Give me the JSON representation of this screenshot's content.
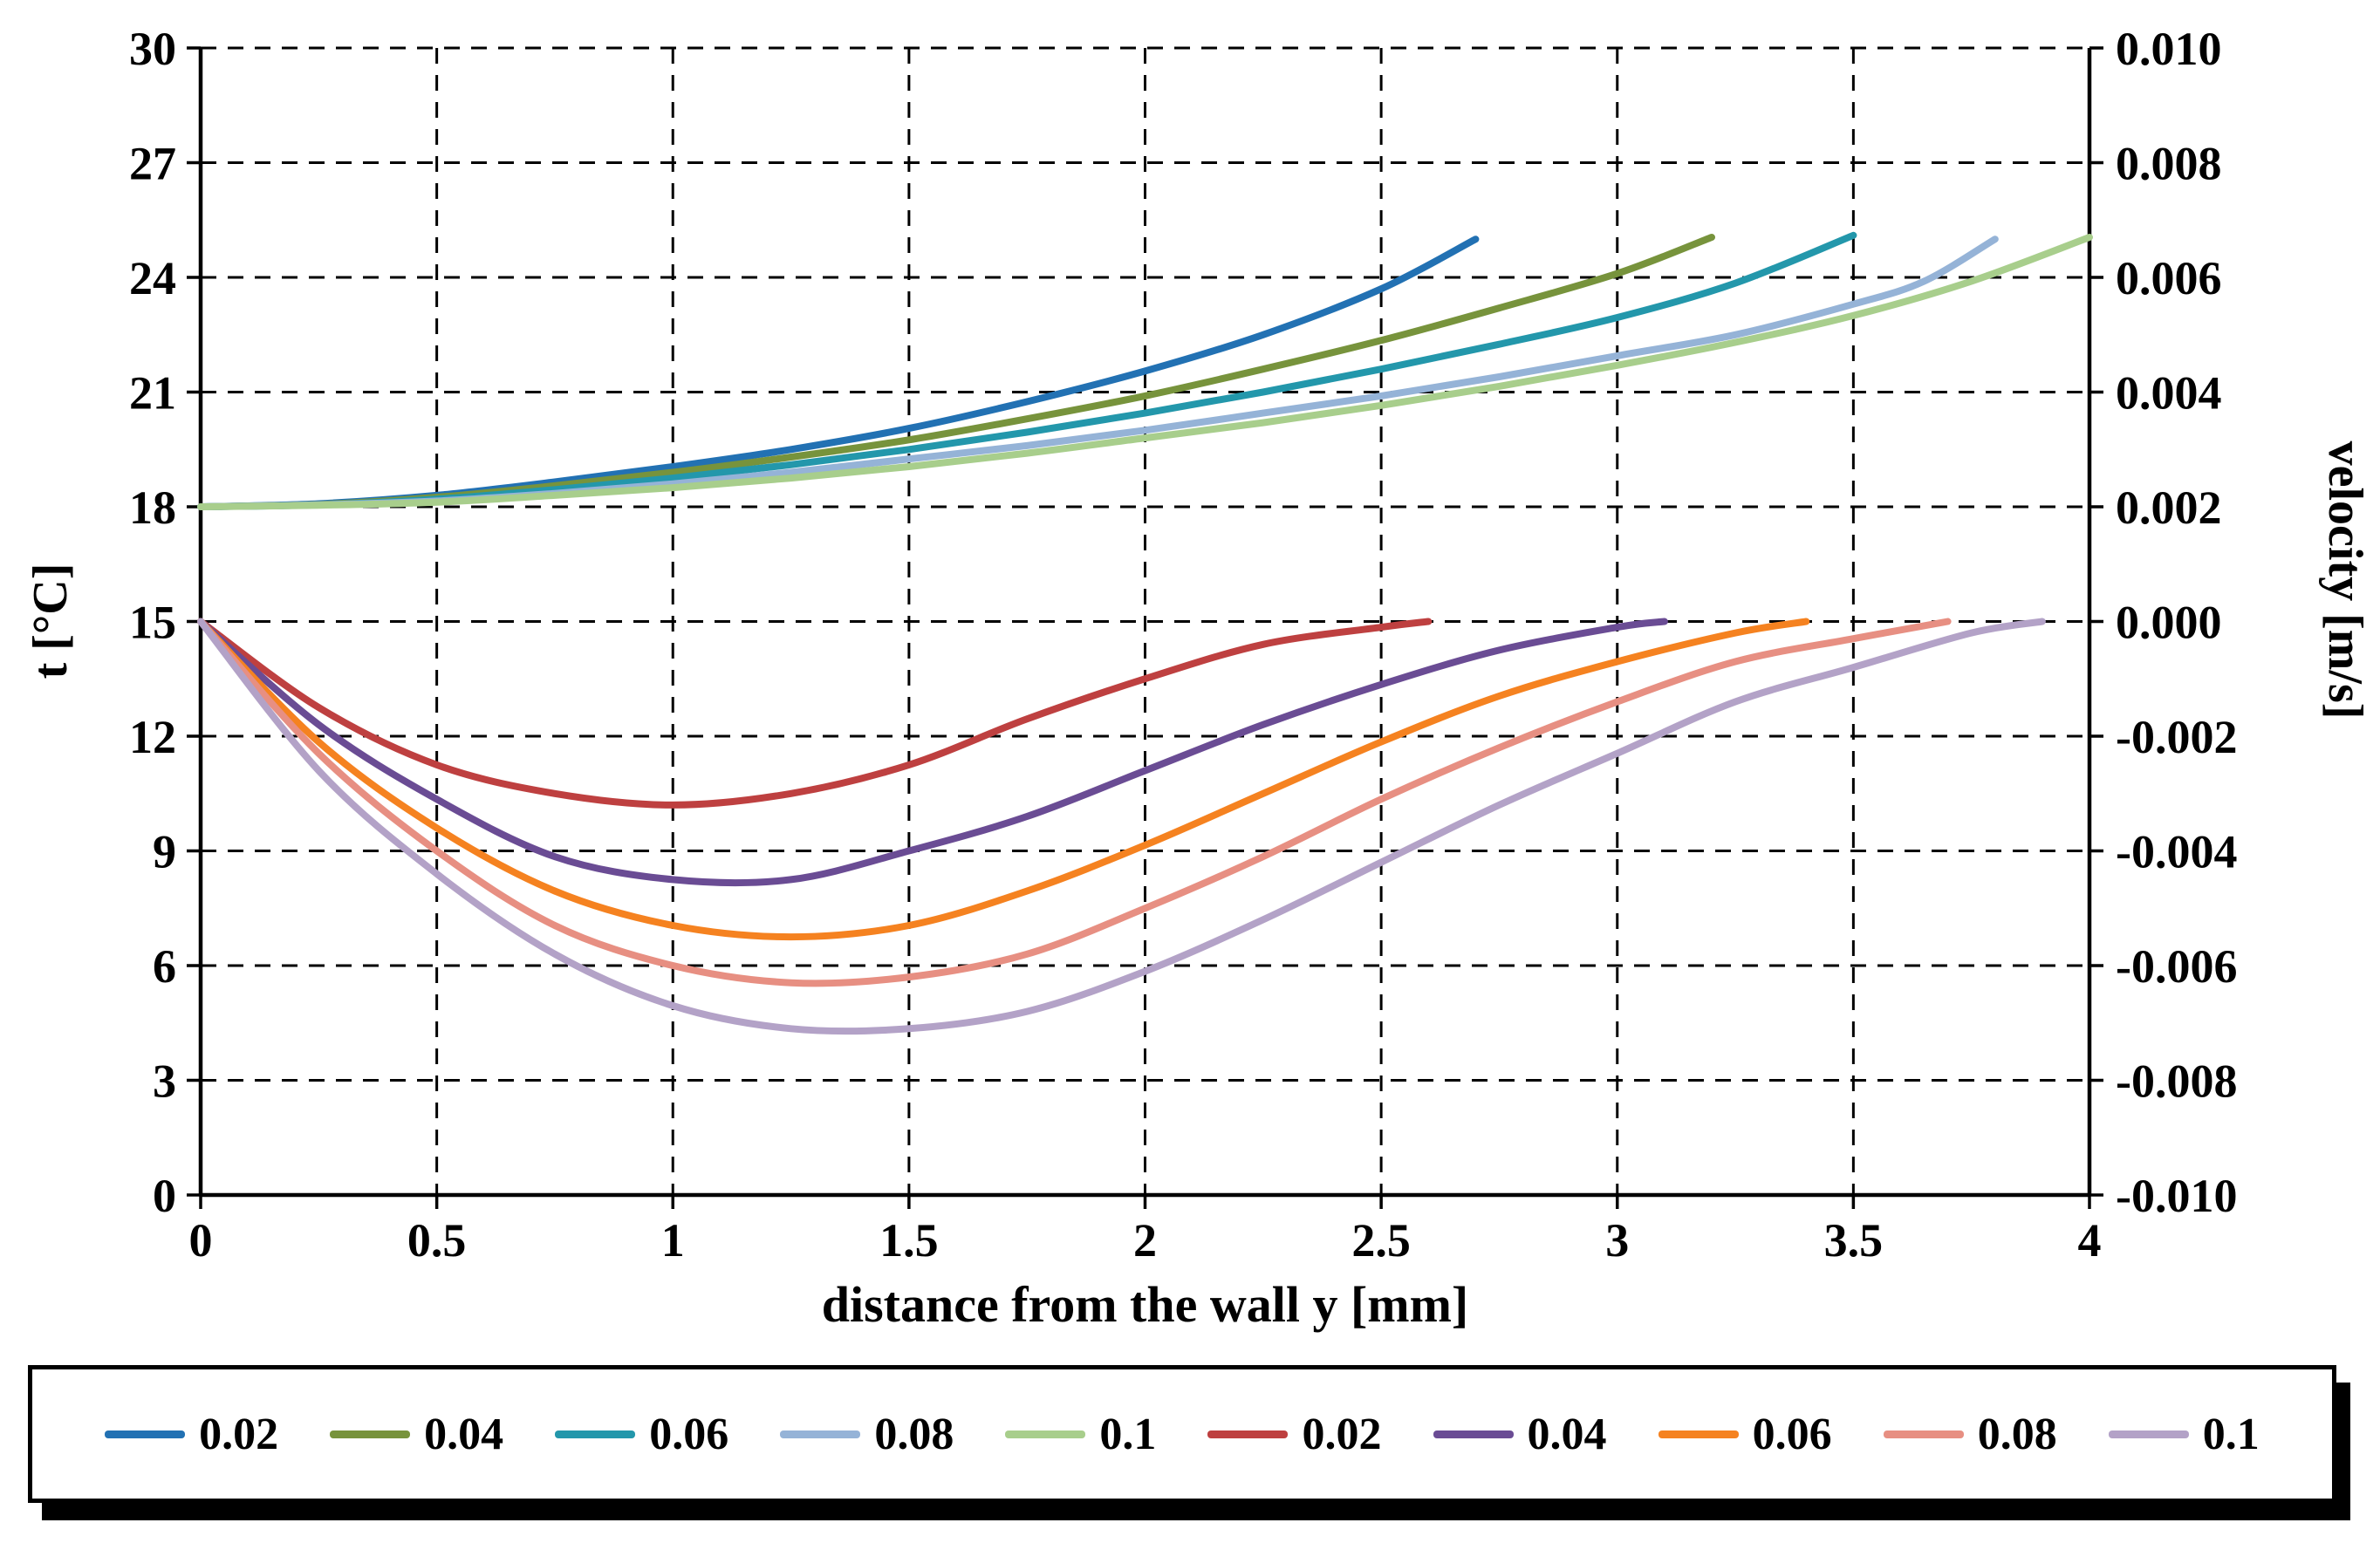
{
  "chart_data": {
    "type": "line",
    "title": "",
    "xlabel": "distance from the wall y [mm]",
    "ylabel_left": "t [°C]",
    "ylabel_right": "velocity [m/s]",
    "xlim": [
      0,
      4
    ],
    "x_ticks": [
      0,
      0.5,
      1,
      1.5,
      2,
      2.5,
      3,
      3.5,
      4
    ],
    "x_tick_labels": [
      "0",
      "0.5",
      "1",
      "1.5",
      "2",
      "2.5",
      "3",
      "3.5",
      "4"
    ],
    "left_axis": {
      "lim": [
        0,
        30
      ],
      "ticks": [
        0,
        3,
        6,
        9,
        12,
        15,
        18,
        21,
        24,
        27,
        30
      ],
      "tick_labels": [
        "0",
        "3",
        "6",
        "9",
        "12",
        "15",
        "18",
        "21",
        "24",
        "27",
        "30"
      ]
    },
    "right_axis": {
      "lim": [
        -0.01,
        0.01
      ],
      "ticks": [
        -0.01,
        -0.008,
        -0.006,
        -0.004,
        -0.002,
        0,
        0.002,
        0.004,
        0.006,
        0.008,
        0.01
      ],
      "tick_labels": [
        "-0.010",
        "-0.008",
        "-0.006",
        "-0.004",
        "-0.002",
        "0.000",
        "0.002",
        "0.004",
        "0.006",
        "0.008",
        "0.010"
      ]
    },
    "grid": "dashed",
    "legend_position": "bottom",
    "axis_color": "#000000",
    "background": "#ffffff",
    "series": [
      {
        "name": "0.02",
        "group": "temperature",
        "axis": "left",
        "color": "#2271B3",
        "points": [
          [
            0,
            18
          ],
          [
            0.25,
            18.08
          ],
          [
            0.5,
            18.3
          ],
          [
            0.75,
            18.65
          ],
          [
            1,
            19.05
          ],
          [
            1.25,
            19.5
          ],
          [
            1.5,
            20.05
          ],
          [
            1.75,
            20.75
          ],
          [
            2,
            21.55
          ],
          [
            2.25,
            22.5
          ],
          [
            2.5,
            23.7
          ],
          [
            2.7,
            25
          ]
        ]
      },
      {
        "name": "0.04",
        "group": "temperature",
        "axis": "left",
        "color": "#77933C",
        "points": [
          [
            0,
            18
          ],
          [
            0.25,
            18.06
          ],
          [
            0.5,
            18.25
          ],
          [
            0.75,
            18.55
          ],
          [
            1,
            18.9
          ],
          [
            1.25,
            19.3
          ],
          [
            1.5,
            19.75
          ],
          [
            1.75,
            20.3
          ],
          [
            2,
            20.9
          ],
          [
            2.25,
            21.6
          ],
          [
            2.5,
            22.35
          ],
          [
            2.75,
            23.2
          ],
          [
            3,
            24.1
          ],
          [
            3.2,
            25.05
          ]
        ]
      },
      {
        "name": "0.06",
        "group": "temperature",
        "axis": "left",
        "color": "#2397AB",
        "points": [
          [
            0,
            18
          ],
          [
            0.25,
            18.05
          ],
          [
            0.5,
            18.2
          ],
          [
            0.75,
            18.45
          ],
          [
            1,
            18.75
          ],
          [
            1.25,
            19.1
          ],
          [
            1.5,
            19.5
          ],
          [
            1.75,
            19.95
          ],
          [
            2,
            20.45
          ],
          [
            2.25,
            21
          ],
          [
            2.5,
            21.6
          ],
          [
            2.75,
            22.25
          ],
          [
            3,
            22.95
          ],
          [
            3.25,
            23.85
          ],
          [
            3.5,
            25.1
          ]
        ]
      },
      {
        "name": "0.08",
        "group": "temperature",
        "axis": "left",
        "color": "#95B3D7",
        "points": [
          [
            0,
            18
          ],
          [
            0.25,
            18.05
          ],
          [
            0.5,
            18.15
          ],
          [
            0.75,
            18.35
          ],
          [
            1,
            18.6
          ],
          [
            1.25,
            18.9
          ],
          [
            1.5,
            19.25
          ],
          [
            1.75,
            19.6
          ],
          [
            2,
            20
          ],
          [
            2.25,
            20.45
          ],
          [
            2.5,
            20.9
          ],
          [
            2.75,
            21.4
          ],
          [
            3,
            21.95
          ],
          [
            3.25,
            22.5
          ],
          [
            3.5,
            23.3
          ],
          [
            3.65,
            23.9
          ],
          [
            3.8,
            25
          ]
        ]
      },
      {
        "name": "0.1",
        "group": "temperature",
        "axis": "left",
        "color": "#A8CE8C",
        "points": [
          [
            0,
            18
          ],
          [
            0.25,
            18.04
          ],
          [
            0.5,
            18.12
          ],
          [
            0.75,
            18.3
          ],
          [
            1,
            18.5
          ],
          [
            1.25,
            18.75
          ],
          [
            1.5,
            19.05
          ],
          [
            1.75,
            19.4
          ],
          [
            2,
            19.8
          ],
          [
            2.25,
            20.2
          ],
          [
            2.5,
            20.65
          ],
          [
            2.75,
            21.15
          ],
          [
            3,
            21.7
          ],
          [
            3.25,
            22.3
          ],
          [
            3.5,
            23
          ],
          [
            3.75,
            23.9
          ],
          [
            4,
            25.05
          ]
        ]
      },
      {
        "name": "0.02",
        "group": "velocity",
        "axis": "right",
        "color": "#BE4040",
        "points": [
          [
            0,
            0
          ],
          [
            0.25,
            -0.0015
          ],
          [
            0.5,
            -0.0025
          ],
          [
            0.75,
            -0.003
          ],
          [
            1,
            -0.0032
          ],
          [
            1.25,
            -0.003
          ],
          [
            1.5,
            -0.0025
          ],
          [
            1.75,
            -0.0017
          ],
          [
            2,
            -0.001
          ],
          [
            2.25,
            -0.0004
          ],
          [
            2.5,
            -0.0001
          ],
          [
            2.6,
            0
          ]
        ]
      },
      {
        "name": "0.04",
        "group": "velocity",
        "axis": "right",
        "color": "#6A4C94",
        "points": [
          [
            0,
            0
          ],
          [
            0.25,
            -0.0018
          ],
          [
            0.5,
            -0.0031
          ],
          [
            0.75,
            -0.0041
          ],
          [
            1,
            -0.0045
          ],
          [
            1.25,
            -0.0045
          ],
          [
            1.5,
            -0.004
          ],
          [
            1.75,
            -0.0034
          ],
          [
            2,
            -0.0026
          ],
          [
            2.25,
            -0.0018
          ],
          [
            2.5,
            -0.0011
          ],
          [
            2.75,
            -0.0005
          ],
          [
            3,
            -0.0001
          ],
          [
            3.1,
            0
          ]
        ]
      },
      {
        "name": "0.06",
        "group": "velocity",
        "axis": "right",
        "color": "#F58220",
        "points": [
          [
            0,
            0
          ],
          [
            0.25,
            -0.0021
          ],
          [
            0.5,
            -0.0036
          ],
          [
            0.75,
            -0.0047
          ],
          [
            1,
            -0.0053
          ],
          [
            1.25,
            -0.0055
          ],
          [
            1.5,
            -0.0053
          ],
          [
            1.75,
            -0.0047
          ],
          [
            2,
            -0.0039
          ],
          [
            2.25,
            -0.003
          ],
          [
            2.5,
            -0.0021
          ],
          [
            2.75,
            -0.0013
          ],
          [
            3,
            -0.0007
          ],
          [
            3.25,
            -0.0002
          ],
          [
            3.4,
            0
          ]
        ]
      },
      {
        "name": "0.08",
        "group": "velocity",
        "axis": "right",
        "color": "#E78F82",
        "points": [
          [
            0,
            0
          ],
          [
            0.25,
            -0.0023
          ],
          [
            0.5,
            -0.004
          ],
          [
            0.75,
            -0.0053
          ],
          [
            1,
            -0.006
          ],
          [
            1.25,
            -0.0063
          ],
          [
            1.5,
            -0.0062
          ],
          [
            1.75,
            -0.0058
          ],
          [
            2,
            -0.005
          ],
          [
            2.25,
            -0.0041
          ],
          [
            2.5,
            -0.0031
          ],
          [
            2.75,
            -0.0022
          ],
          [
            3,
            -0.0014
          ],
          [
            3.25,
            -0.0007
          ],
          [
            3.5,
            -0.0003
          ],
          [
            3.7,
            0
          ]
        ]
      },
      {
        "name": "0.1",
        "group": "velocity",
        "axis": "right",
        "color": "#B3A2C7",
        "points": [
          [
            0,
            0
          ],
          [
            0.25,
            -0.0026
          ],
          [
            0.5,
            -0.0044
          ],
          [
            0.75,
            -0.0058
          ],
          [
            1,
            -0.0067
          ],
          [
            1.25,
            -0.0071
          ],
          [
            1.5,
            -0.0071
          ],
          [
            1.75,
            -0.0068
          ],
          [
            2,
            -0.0061
          ],
          [
            2.25,
            -0.0052
          ],
          [
            2.5,
            -0.0042
          ],
          [
            2.75,
            -0.0032
          ],
          [
            3,
            -0.0023
          ],
          [
            3.25,
            -0.0014
          ],
          [
            3.5,
            -0.0008
          ],
          [
            3.75,
            -0.0002
          ],
          [
            3.9,
            0
          ]
        ]
      }
    ]
  }
}
